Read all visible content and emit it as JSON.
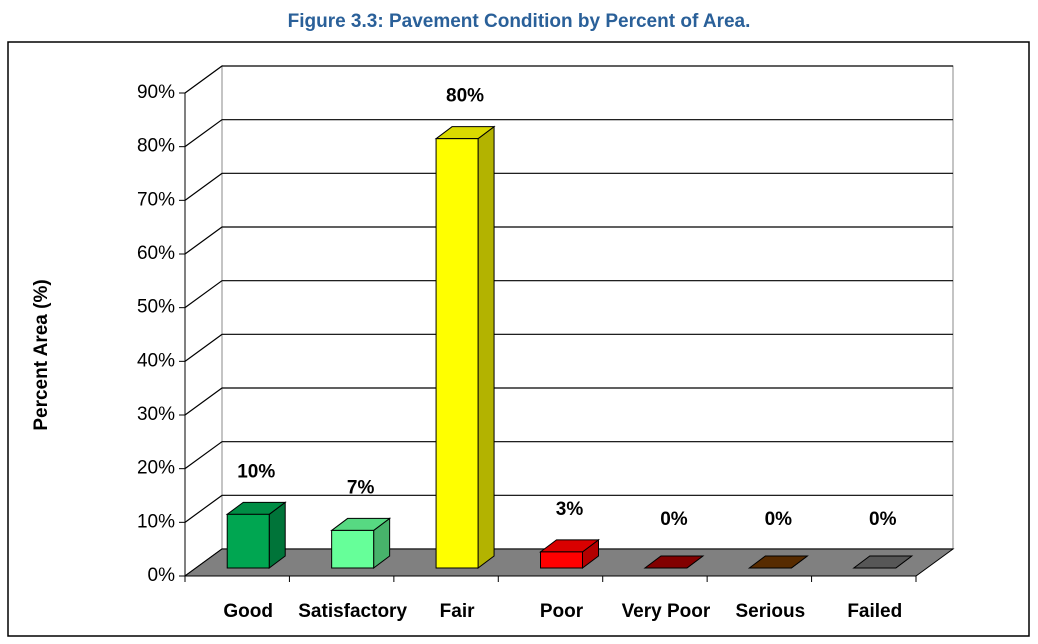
{
  "chart_data": {
    "type": "bar3d",
    "title": "Figure 3.3: Pavement Condition by Percent of Area.",
    "y_axis_label": "Percent Area (%)",
    "categories": [
      "Good",
      "Satisfactory",
      "Fair",
      "Poor",
      "Very Poor",
      "Serious",
      "Failed"
    ],
    "values": [
      10,
      7,
      80,
      3,
      0,
      0,
      0
    ],
    "value_labels": [
      "10%",
      "7%",
      "80%",
      "3%",
      "0%",
      "0%",
      "0%"
    ],
    "colors": [
      "#00a651",
      "#66ff99",
      "#ffff00",
      "#ff0000",
      "#990000",
      "#663300",
      "#666666"
    ],
    "ylim": [
      0,
      90
    ],
    "yticks": [
      {
        "value": 0,
        "label": "0%"
      },
      {
        "value": 10,
        "label": "10%"
      },
      {
        "value": 20,
        "label": "20%"
      },
      {
        "value": 30,
        "label": "30%"
      },
      {
        "value": 40,
        "label": "40%"
      },
      {
        "value": 50,
        "label": "50%"
      },
      {
        "value": 60,
        "label": "60%"
      },
      {
        "value": 70,
        "label": "70%"
      },
      {
        "value": 80,
        "label": "80%"
      },
      {
        "value": 90,
        "label": "90%"
      }
    ],
    "grid": true
  }
}
